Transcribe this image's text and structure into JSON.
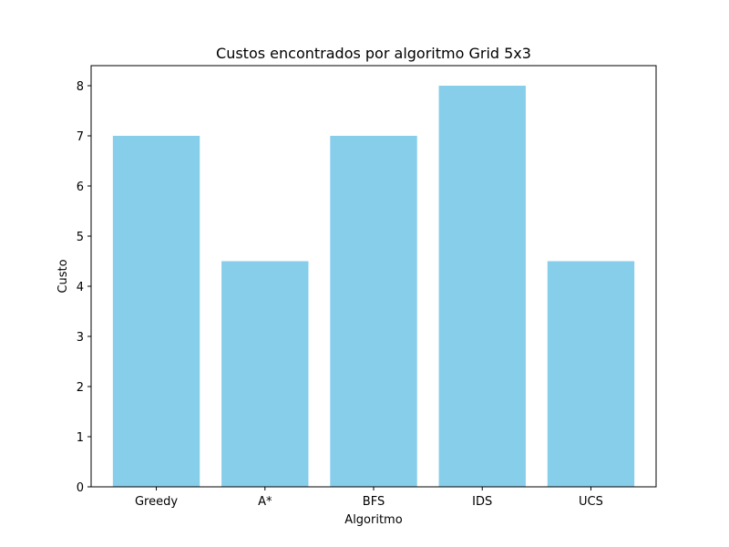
{
  "chart_data": {
    "type": "bar",
    "title": "Custos encontrados por algoritmo Grid 5x3",
    "xlabel": "Algoritmo",
    "ylabel": "Custo",
    "categories": [
      "Greedy",
      "A*",
      "BFS",
      "IDS",
      "UCS"
    ],
    "values": [
      7,
      4.5,
      7,
      8,
      4.5
    ],
    "ylim": [
      0,
      8.4
    ],
    "yticks": [
      0,
      1,
      2,
      3,
      4,
      5,
      6,
      7,
      8
    ],
    "grid": false,
    "bar_color": "#87CEEB"
  }
}
